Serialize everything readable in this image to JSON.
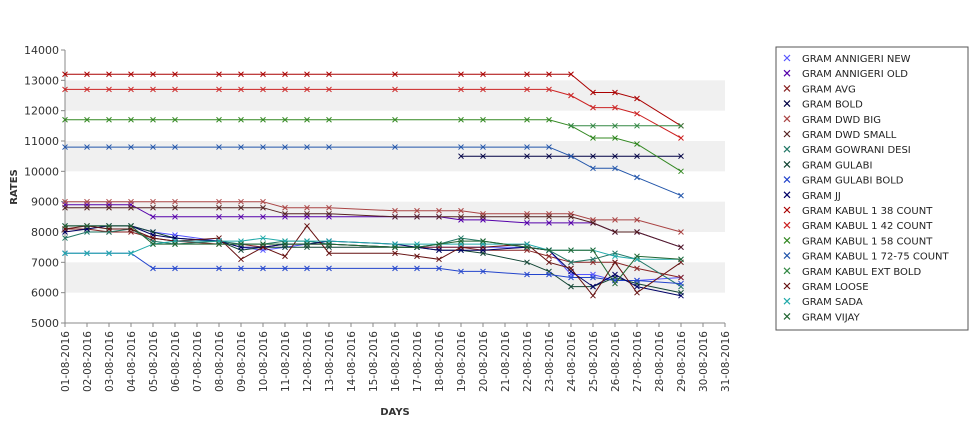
{
  "chart_data": {
    "type": "line",
    "title": "",
    "xlabel": "DAYS",
    "ylabel": "RATES",
    "ylim": [
      5000,
      14000
    ],
    "yticks": [
      "5000",
      "6000",
      "7000",
      "8000",
      "9000",
      "10000",
      "11000",
      "12000",
      "13000",
      "14000"
    ],
    "grid": "alternating horizontal bands",
    "legend_position": "right",
    "categories": [
      "01-08-2016",
      "02-08-2016",
      "03-08-2016",
      "04-08-2016",
      "05-08-2016",
      "06-08-2016",
      "07-08-2016",
      "08-08-2016",
      "09-08-2016",
      "10-08-2016",
      "11-08-2016",
      "12-08-2016",
      "13-08-2016",
      "14-08-2016",
      "15-08-2016",
      "16-08-2016",
      "17-08-2016",
      "18-08-2016",
      "19-08-2016",
      "20-08-2016",
      "21-08-2016",
      "22-08-2016",
      "23-08-2016",
      "24-08-2016",
      "25-08-2016",
      "26-08-2016",
      "27-08-2016",
      "28-08-2016",
      "29-08-2016",
      "30-08-2016",
      "31-08-2016"
    ],
    "series": [
      {
        "name": "GRAM ANNIGERI NEW",
        "color": "#5555ff",
        "values": [
          8200,
          8200,
          8200,
          8200,
          8000,
          7900,
          null,
          7700,
          7500,
          7400,
          7500,
          7600,
          7600,
          null,
          null,
          7500,
          7500,
          7500,
          7500,
          7500,
          null,
          7500,
          7400,
          6600,
          6600,
          6400,
          6400,
          null,
          6500,
          null,
          null
        ]
      },
      {
        "name": "GRAM ANNIGERI OLD",
        "color": "#5500aa",
        "values": [
          8900,
          8900,
          8900,
          8900,
          8500,
          8500,
          null,
          8500,
          8500,
          8500,
          8500,
          8500,
          8500,
          null,
          null,
          8500,
          8500,
          8500,
          8400,
          8400,
          null,
          8300,
          8300,
          8300,
          8300,
          8000,
          8000,
          null,
          7500,
          null,
          null
        ]
      },
      {
        "name": "GRAM AVG",
        "color": "#882222",
        "values": [
          8100,
          8100,
          8000,
          8000,
          7800,
          7700,
          null,
          7600,
          7600,
          7500,
          7600,
          7600,
          7600,
          null,
          null,
          7500,
          7500,
          7500,
          7500,
          7400,
          null,
          7400,
          7200,
          7000,
          7000,
          7000,
          6800,
          null,
          6500,
          null,
          null
        ]
      },
      {
        "name": "GRAM BOLD",
        "color": "#000044",
        "values": [
          null,
          null,
          null,
          null,
          null,
          null,
          null,
          null,
          null,
          null,
          null,
          null,
          null,
          null,
          null,
          null,
          null,
          null,
          10500,
          10500,
          null,
          10500,
          10500,
          10500,
          10500,
          10500,
          10500,
          null,
          10500,
          null,
          null
        ]
      },
      {
        "name": "GRAM DWD BIG",
        "color": "#aa4444",
        "values": [
          9000,
          9000,
          9000,
          9000,
          9000,
          9000,
          null,
          9000,
          9000,
          9000,
          8800,
          8800,
          8800,
          null,
          null,
          8700,
          8700,
          8700,
          8700,
          8600,
          null,
          8600,
          8600,
          8600,
          8400,
          8400,
          8400,
          null,
          8000,
          null,
          null
        ]
      },
      {
        "name": "GRAM DWD SMALL",
        "color": "#552222",
        "values": [
          8800,
          8800,
          8800,
          8800,
          8800,
          8800,
          null,
          8800,
          8800,
          8800,
          8600,
          8600,
          8600,
          null,
          null,
          8500,
          8500,
          8500,
          8500,
          8500,
          null,
          8500,
          8500,
          8500,
          8300,
          8000,
          8000,
          null,
          7500,
          null,
          null
        ]
      },
      {
        "name": "GRAM GOWRANI DESI",
        "color": "#227766",
        "values": [
          7800,
          8000,
          8000,
          8100,
          7700,
          7600,
          null,
          7700,
          7600,
          7600,
          7700,
          7700,
          7600,
          null,
          null,
          7500,
          7500,
          7600,
          7800,
          7700,
          null,
          7500,
          7400,
          7000,
          7100,
          7300,
          7100,
          null,
          6200,
          null,
          null
        ]
      },
      {
        "name": "GRAM GULABI",
        "color": "#114433",
        "values": [
          8200,
          8200,
          8200,
          8200,
          8000,
          7800,
          null,
          7700,
          7400,
          7500,
          7500,
          7500,
          7500,
          null,
          null,
          7500,
          7500,
          7400,
          7400,
          7300,
          null,
          7000,
          6700,
          6200,
          6200,
          6500,
          6300,
          null,
          6000,
          null,
          null
        ]
      },
      {
        "name": "GRAM GULABI BOLD",
        "color": "#2244cc",
        "values": [
          7300,
          7300,
          7300,
          7300,
          6800,
          6800,
          null,
          6800,
          6800,
          6800,
          6800,
          6800,
          6800,
          null,
          null,
          6800,
          6800,
          6800,
          6700,
          6700,
          null,
          6600,
          6600,
          6500,
          6500,
          6400,
          6400,
          null,
          6300,
          null,
          null
        ]
      },
      {
        "name": "GRAM JJ",
        "color": "#000066",
        "values": [
          8000,
          8100,
          8200,
          8200,
          7900,
          7800,
          null,
          7700,
          7500,
          7500,
          7600,
          7600,
          7700,
          null,
          null,
          7600,
          7500,
          7400,
          7400,
          7400,
          null,
          7500,
          7400,
          6700,
          6200,
          6600,
          6200,
          null,
          5900,
          null,
          null
        ]
      },
      {
        "name": "GRAM KABUL 1 38 COUNT",
        "color": "#aa0000",
        "values": [
          13200,
          13200,
          13200,
          13200,
          13200,
          13200,
          null,
          13200,
          13200,
          13200,
          13200,
          13200,
          13200,
          null,
          null,
          13200,
          null,
          null,
          13200,
          13200,
          null,
          13200,
          13200,
          13200,
          12600,
          12600,
          12400,
          null,
          11500,
          null,
          null
        ]
      },
      {
        "name": "GRAM KABUL 1 42 COUNT",
        "color": "#cc2222",
        "values": [
          12700,
          12700,
          12700,
          12700,
          12700,
          12700,
          null,
          12700,
          12700,
          12700,
          12700,
          12700,
          12700,
          null,
          null,
          12700,
          null,
          null,
          12700,
          12700,
          null,
          12700,
          12700,
          12500,
          12100,
          12100,
          11900,
          null,
          11100,
          null,
          null
        ]
      },
      {
        "name": "GRAM KABUL 1 58 COUNT",
        "color": "#338822",
        "values": [
          11700,
          11700,
          11700,
          11700,
          11700,
          11700,
          null,
          11700,
          11700,
          11700,
          11700,
          11700,
          11700,
          null,
          null,
          11700,
          null,
          null,
          11700,
          11700,
          null,
          11700,
          11700,
          11500,
          11100,
          11100,
          10900,
          null,
          10000,
          null,
          null
        ]
      },
      {
        "name": "GRAM KABUL 1 72-75 COUNT",
        "color": "#2255aa",
        "values": [
          10800,
          10800,
          10800,
          10800,
          10800,
          10800,
          null,
          10800,
          10800,
          10800,
          10800,
          10800,
          10800,
          null,
          null,
          10800,
          null,
          null,
          10800,
          10800,
          null,
          10800,
          10800,
          10500,
          10100,
          10100,
          9800,
          null,
          9200,
          null,
          null
        ]
      },
      {
        "name": "GRAM KABUL EXT BOLD",
        "color": "#338844",
        "values": [
          null,
          null,
          null,
          null,
          null,
          null,
          null,
          null,
          null,
          null,
          null,
          null,
          null,
          null,
          null,
          null,
          null,
          null,
          null,
          null,
          null,
          null,
          null,
          11500,
          11500,
          11500,
          11500,
          null,
          11500,
          null,
          null
        ]
      },
      {
        "name": "GRAM LOOSE",
        "color": "#661111",
        "values": [
          8100,
          8200,
          8100,
          8100,
          7800,
          7700,
          null,
          7800,
          7100,
          7500,
          7200,
          8200,
          7300,
          null,
          null,
          7300,
          7200,
          7100,
          7500,
          7500,
          null,
          7600,
          7000,
          6800,
          5900,
          7000,
          6000,
          null,
          7000,
          null,
          null
        ]
      },
      {
        "name": "GRAM SADA",
        "color": "#22aaaa",
        "values": [
          7300,
          7300,
          7300,
          7300,
          7600,
          7700,
          null,
          7700,
          7700,
          7800,
          7700,
          7700,
          7700,
          null,
          null,
          7600,
          7600,
          7600,
          7600,
          7600,
          null,
          7600,
          7400,
          7400,
          7400,
          7200,
          7100,
          null,
          7100,
          null,
          null
        ]
      },
      {
        "name": "GRAM VIJAY",
        "color": "#226633",
        "values": [
          8200,
          8200,
          8200,
          8200,
          7600,
          7600,
          null,
          7600,
          7600,
          7600,
          7600,
          7600,
          7600,
          null,
          null,
          7500,
          7500,
          7600,
          7700,
          7700,
          null,
          7500,
          7400,
          7400,
          7400,
          6300,
          7200,
          null,
          7100,
          null,
          null
        ]
      }
    ]
  }
}
